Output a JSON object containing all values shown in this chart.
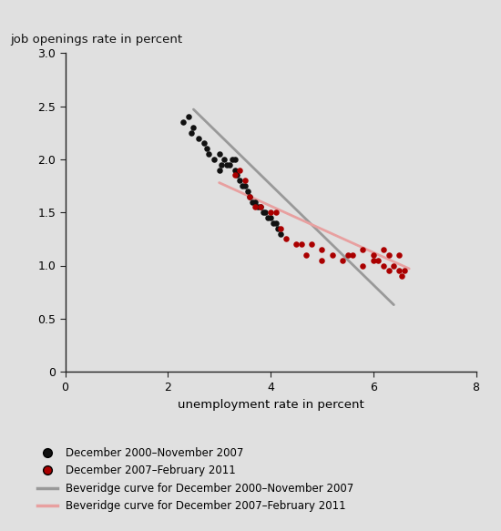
{
  "black_dots": [
    [
      2.3,
      2.35
    ],
    [
      2.4,
      2.4
    ],
    [
      2.45,
      2.25
    ],
    [
      2.5,
      2.3
    ],
    [
      2.6,
      2.2
    ],
    [
      2.7,
      2.15
    ],
    [
      2.75,
      2.1
    ],
    [
      2.8,
      2.05
    ],
    [
      2.9,
      2.0
    ],
    [
      3.0,
      2.05
    ],
    [
      3.05,
      1.95
    ],
    [
      3.1,
      2.0
    ],
    [
      3.15,
      1.95
    ],
    [
      3.2,
      1.95
    ],
    [
      3.25,
      2.0
    ],
    [
      3.3,
      1.9
    ],
    [
      3.35,
      1.85
    ],
    [
      3.4,
      1.8
    ],
    [
      3.45,
      1.75
    ],
    [
      3.5,
      1.75
    ],
    [
      3.55,
      1.7
    ],
    [
      3.6,
      1.65
    ],
    [
      3.65,
      1.6
    ],
    [
      3.7,
      1.6
    ],
    [
      3.75,
      1.55
    ],
    [
      3.8,
      1.55
    ],
    [
      3.85,
      1.5
    ],
    [
      3.9,
      1.5
    ],
    [
      3.95,
      1.45
    ],
    [
      4.0,
      1.45
    ],
    [
      4.05,
      1.4
    ],
    [
      4.1,
      1.4
    ],
    [
      4.15,
      1.35
    ],
    [
      4.2,
      1.3
    ],
    [
      3.0,
      1.9
    ],
    [
      3.3,
      2.0
    ]
  ],
  "red_dots": [
    [
      3.3,
      1.85
    ],
    [
      3.4,
      1.9
    ],
    [
      3.5,
      1.8
    ],
    [
      3.6,
      1.65
    ],
    [
      3.7,
      1.55
    ],
    [
      3.8,
      1.55
    ],
    [
      4.0,
      1.5
    ],
    [
      4.1,
      1.5
    ],
    [
      4.2,
      1.35
    ],
    [
      4.3,
      1.25
    ],
    [
      4.5,
      1.2
    ],
    [
      4.7,
      1.1
    ],
    [
      5.0,
      1.05
    ],
    [
      5.2,
      1.1
    ],
    [
      5.4,
      1.05
    ],
    [
      5.5,
      1.1
    ],
    [
      5.6,
      1.1
    ],
    [
      5.8,
      1.15
    ],
    [
      5.8,
      1.0
    ],
    [
      6.0,
      1.1
    ],
    [
      6.0,
      1.05
    ],
    [
      6.1,
      1.05
    ],
    [
      6.2,
      1.0
    ],
    [
      6.2,
      1.15
    ],
    [
      6.3,
      0.95
    ],
    [
      6.3,
      1.1
    ],
    [
      6.4,
      1.0
    ],
    [
      6.5,
      0.95
    ],
    [
      6.5,
      1.1
    ],
    [
      6.55,
      0.9
    ],
    [
      6.6,
      0.95
    ],
    [
      4.8,
      1.2
    ],
    [
      4.6,
      1.2
    ],
    [
      5.0,
      1.15
    ]
  ],
  "gray_curve_x": [
    2.5,
    6.4
  ],
  "gray_curve_y": [
    2.47,
    0.63
  ],
  "red_curve_x": [
    3.0,
    6.7
  ],
  "red_curve_y": [
    1.78,
    0.97
  ],
  "xlim": [
    0,
    8
  ],
  "ylim": [
    0,
    3.0
  ],
  "xticks": [
    0,
    2,
    4,
    6,
    8
  ],
  "yticks": [
    0,
    0.5,
    1.0,
    1.5,
    2.0,
    2.5,
    3.0
  ],
  "ytick_labels": [
    "0",
    "0.5",
    "1.0",
    "1.5",
    "2.0",
    "2.5",
    "3.0"
  ],
  "xtick_labels": [
    "0",
    "2",
    "4",
    "6",
    "8"
  ],
  "xlabel": "unemployment rate in percent",
  "ylabel": "job openings rate in percent",
  "black_dot_color": "#111111",
  "red_dot_color": "#aa0000",
  "gray_line_color": "#999999",
  "red_line_color": "#e8a0a0",
  "background_color": "#e0e0e0",
  "legend_entries": [
    {
      "label": "December 2000–November 2007",
      "type": "dot",
      "color": "#111111"
    },
    {
      "label": "December 2007–February 2011",
      "type": "dot",
      "color": "#aa0000"
    },
    {
      "label": "Beveridge curve for December 2000–November 2007",
      "type": "line",
      "color": "#999999"
    },
    {
      "label": "Beveridge curve for December 2007–February 2011",
      "type": "line",
      "color": "#e8a0a0"
    }
  ]
}
